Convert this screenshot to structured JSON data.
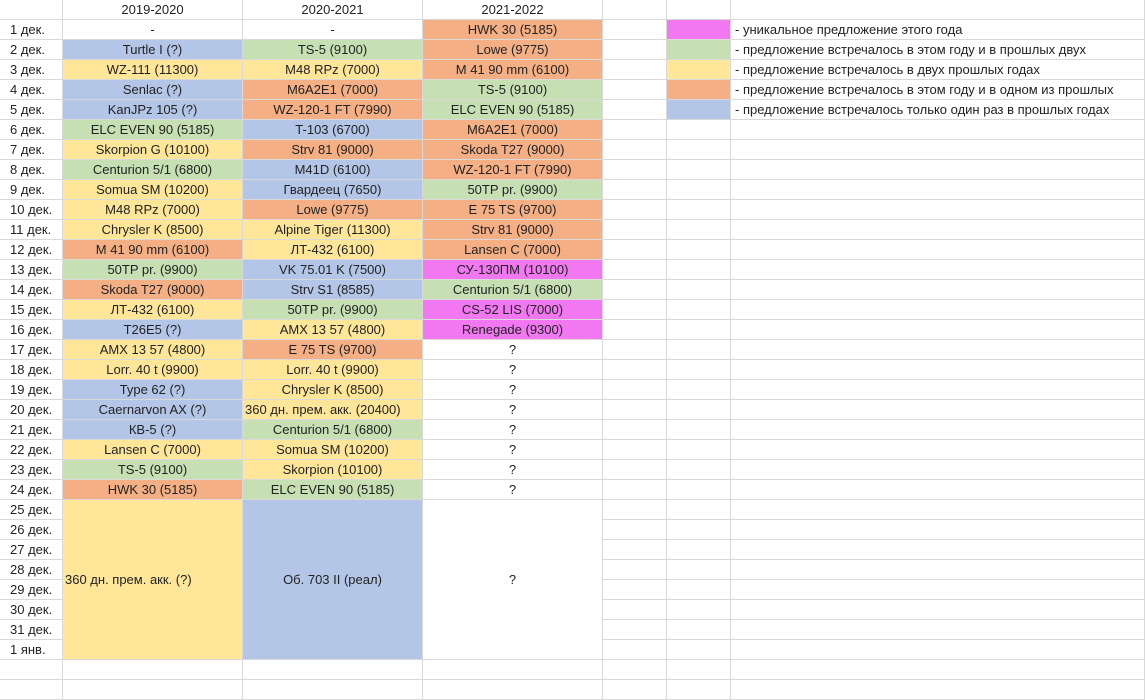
{
  "colors": {
    "U": "#f278f2",
    "G": "#c6e0b4",
    "Y": "#ffe699",
    "O": "#f4b084",
    "B": "#b4c6e7",
    "W": "#ffffff"
  },
  "header": [
    "",
    "2019-2020",
    "2020-2021",
    "2021-2022"
  ],
  "rows": [
    {
      "date": "1 дек.",
      "cells": [
        [
          "-",
          "W"
        ],
        [
          "-",
          "W"
        ],
        [
          "HWK 30 (5185)",
          "O"
        ]
      ]
    },
    {
      "date": "2 дек.",
      "cells": [
        [
          "Turtle I (?)",
          "B"
        ],
        [
          "TS-5 (9100)",
          "G"
        ],
        [
          "Lowe (9775)",
          "O"
        ]
      ]
    },
    {
      "date": "3 дек.",
      "cells": [
        [
          "WZ-111 (11300)",
          "Y"
        ],
        [
          "M48 RPz (7000)",
          "Y"
        ],
        [
          "M 41 90 mm (6100)",
          "O"
        ]
      ]
    },
    {
      "date": "4 дек.",
      "cells": [
        [
          "Senlac (?)",
          "B"
        ],
        [
          "M6A2E1 (7000)",
          "O"
        ],
        [
          "TS-5 (9100)",
          "G"
        ]
      ]
    },
    {
      "date": "5 дек.",
      "cells": [
        [
          "KanJPz 105 (?)",
          "B"
        ],
        [
          "WZ-120-1 FT (7990)",
          "O"
        ],
        [
          "ELC EVEN 90 (5185)",
          "G"
        ]
      ]
    },
    {
      "date": "6 дек.",
      "cells": [
        [
          "ELC EVEN 90 (5185)",
          "G"
        ],
        [
          "T-103 (6700)",
          "B"
        ],
        [
          "M6A2E1 (7000)",
          "O"
        ]
      ]
    },
    {
      "date": "7 дек.",
      "cells": [
        [
          "Skorpion G (10100)",
          "Y"
        ],
        [
          "Strv 81 (9000)",
          "O"
        ],
        [
          "Skoda T27 (9000)",
          "O"
        ]
      ]
    },
    {
      "date": "8 дек.",
      "cells": [
        [
          "Centurion 5/1 (6800)",
          "G"
        ],
        [
          "M41D (6100)",
          "B"
        ],
        [
          "WZ-120-1 FT (7990)",
          "O"
        ]
      ]
    },
    {
      "date": "9 дек.",
      "cells": [
        [
          "Somua SM (10200)",
          "Y"
        ],
        [
          "Гвардеец (7650)",
          "B"
        ],
        [
          "50TP pr. (9900)",
          "G"
        ]
      ]
    },
    {
      "date": "10 дек.",
      "cells": [
        [
          "M48 RPz (7000)",
          "Y"
        ],
        [
          "Lowe (9775)",
          "O"
        ],
        [
          "E 75 TS (9700)",
          "O"
        ]
      ]
    },
    {
      "date": "11 дек.",
      "cells": [
        [
          "Chrysler K (8500)",
          "Y"
        ],
        [
          "Alpine Tiger (11300)",
          "Y"
        ],
        [
          "Strv 81 (9000)",
          "O"
        ]
      ]
    },
    {
      "date": "12 дек.",
      "cells": [
        [
          "M 41 90 mm (6100)",
          "O"
        ],
        [
          "ЛТ-432 (6100)",
          "Y"
        ],
        [
          "Lansen C (7000)",
          "O"
        ]
      ]
    },
    {
      "date": "13 дек.",
      "cells": [
        [
          "50TP pr. (9900)",
          "G"
        ],
        [
          "VK 75.01 K (7500)",
          "B"
        ],
        [
          "СУ-130ПМ (10100)",
          "U"
        ]
      ]
    },
    {
      "date": "14 дек.",
      "cells": [
        [
          "Skoda T27 (9000)",
          "O"
        ],
        [
          "Strv S1 (8585)",
          "B"
        ],
        [
          "Centurion 5/1 (6800)",
          "G"
        ]
      ]
    },
    {
      "date": "15 дек.",
      "cells": [
        [
          "ЛТ-432 (6100)",
          "Y"
        ],
        [
          "50TP pr. (9900)",
          "G"
        ],
        [
          "CS-52 LIS (7000)",
          "U"
        ]
      ]
    },
    {
      "date": "16 дек.",
      "cells": [
        [
          "T26E5 (?)",
          "B"
        ],
        [
          "AMX 13 57 (4800)",
          "Y"
        ],
        [
          "Renegade (9300)",
          "U"
        ]
      ]
    },
    {
      "date": "17 дек.",
      "cells": [
        [
          "AMX 13 57 (4800)",
          "Y"
        ],
        [
          "E 75 TS (9700)",
          "O"
        ],
        [
          "?",
          "W"
        ]
      ]
    },
    {
      "date": "18 дек.",
      "cells": [
        [
          "Lorr. 40 t (9900)",
          "Y"
        ],
        [
          "Lorr. 40 t (9900)",
          "Y"
        ],
        [
          "?",
          "W"
        ]
      ]
    },
    {
      "date": "19 дек.",
      "cells": [
        [
          "Type 62 (?)",
          "B"
        ],
        [
          "Chrysler K (8500)",
          "Y"
        ],
        [
          "?",
          "W"
        ]
      ]
    },
    {
      "date": "20 дек.",
      "cells": [
        [
          "Caernarvon AX (?)",
          "B"
        ],
        [
          "360 дн. прем. акк. (20400)",
          "Y"
        ],
        [
          "?",
          "W"
        ]
      ]
    },
    {
      "date": "21 дек.",
      "cells": [
        [
          "КВ-5 (?)",
          "B"
        ],
        [
          "Centurion 5/1 (6800)",
          "G"
        ],
        [
          "?",
          "W"
        ]
      ]
    },
    {
      "date": "22 дек.",
      "cells": [
        [
          "Lansen C (7000)",
          "Y"
        ],
        [
          "Somua SM (10200)",
          "Y"
        ],
        [
          "?",
          "W"
        ]
      ]
    },
    {
      "date": "23 дек.",
      "cells": [
        [
          "TS-5 (9100)",
          "G"
        ],
        [
          "Skorpion (10100)",
          "Y"
        ],
        [
          "?",
          "W"
        ]
      ]
    },
    {
      "date": "24 дек.",
      "cells": [
        [
          "HWK 30 (5185)",
          "O"
        ],
        [
          "ELC EVEN 90 (5185)",
          "G"
        ],
        [
          "?",
          "W"
        ]
      ]
    }
  ],
  "tail_dates": [
    "25 дек.",
    "26 дек.",
    "27 дек.",
    "28 дек.",
    "29 дек.",
    "30 дек.",
    "31 дек.",
    "1 янв."
  ],
  "merged": [
    [
      "360 дн. прем. акк. (?)",
      "Y"
    ],
    [
      "Об. 703 II (реал)",
      "B"
    ],
    [
      "?",
      "W"
    ]
  ],
  "legend": [
    {
      "color": "U",
      "text": "- уникальное предложение этого года"
    },
    {
      "color": "G",
      "text": "- предложение встречалось в этом году и в прошлых двух"
    },
    {
      "color": "Y",
      "text": "- предложение встречалось в двух прошлых годах"
    },
    {
      "color": "O",
      "text": "- предложение встречалось в этом году и в одном из прошлых"
    },
    {
      "color": "B",
      "text": "- предложение встречалось только один раз в прошлых годах"
    }
  ]
}
